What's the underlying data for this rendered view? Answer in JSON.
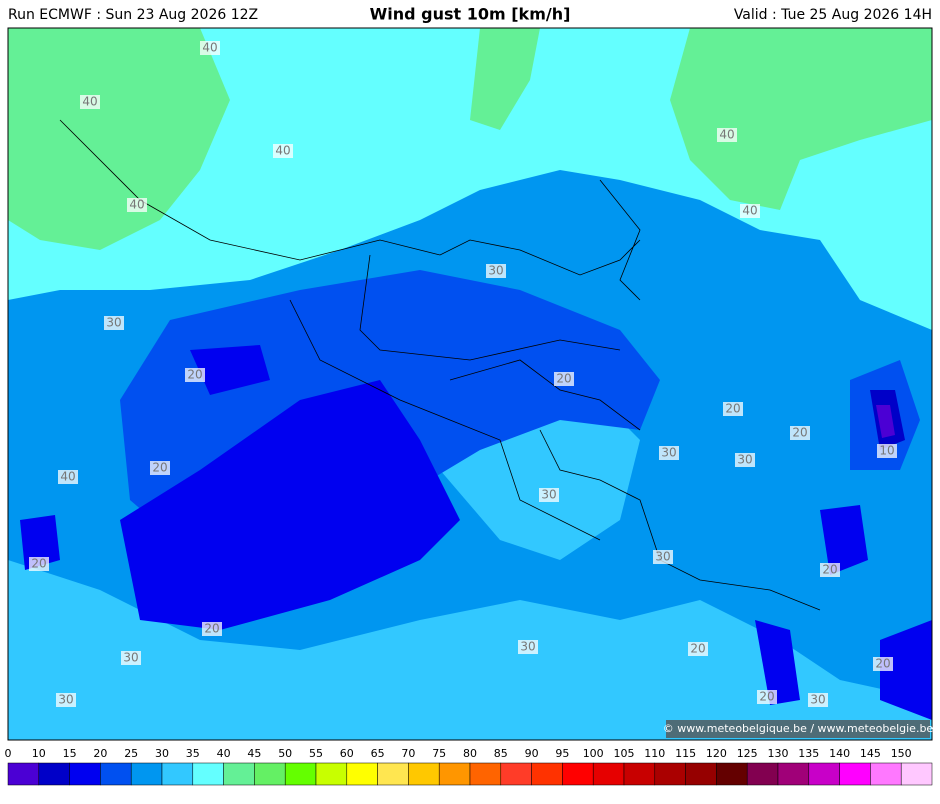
{
  "header": {
    "run": "Run ECMWF : Sun 23 Aug 2026 12Z",
    "title": "Wind gust 10m [km/h]",
    "valid": "Valid : Tue 25 Aug 2026 14H"
  },
  "contour_labels": [
    40,
    40,
    40,
    40,
    40,
    40,
    40,
    30,
    30,
    30,
    30,
    30,
    30,
    30,
    30,
    30,
    30,
    20,
    20,
    20,
    20,
    20,
    20,
    20,
    20,
    20,
    20,
    20,
    10
  ],
  "copyright": "© www.meteobelgique.be / www.meteobelgie.be",
  "colorbar": {
    "ticks": [
      0,
      10,
      15,
      20,
      25,
      30,
      35,
      40,
      45,
      50,
      55,
      60,
      65,
      70,
      75,
      80,
      85,
      90,
      95,
      100,
      105,
      110,
      115,
      120,
      125,
      130,
      135,
      140,
      145,
      150
    ],
    "colors": [
      "#4b00d4",
      "#0000c8",
      "#0000f0",
      "#0050f0",
      "#0096f0",
      "#32c8ff",
      "#64ffff",
      "#64f096",
      "#64f064",
      "#64ff00",
      "#c8ff00",
      "#ffff00",
      "#ffe650",
      "#ffc800",
      "#ff9600",
      "#ff6400",
      "#ff3c28",
      "#ff3200",
      "#ff0000",
      "#e60000",
      "#c80000",
      "#aa0000",
      "#960000",
      "#640000",
      "#820050",
      "#a00078",
      "#c800c8",
      "#ff00ff",
      "#ff78ff",
      "#ffc8ff"
    ]
  }
}
